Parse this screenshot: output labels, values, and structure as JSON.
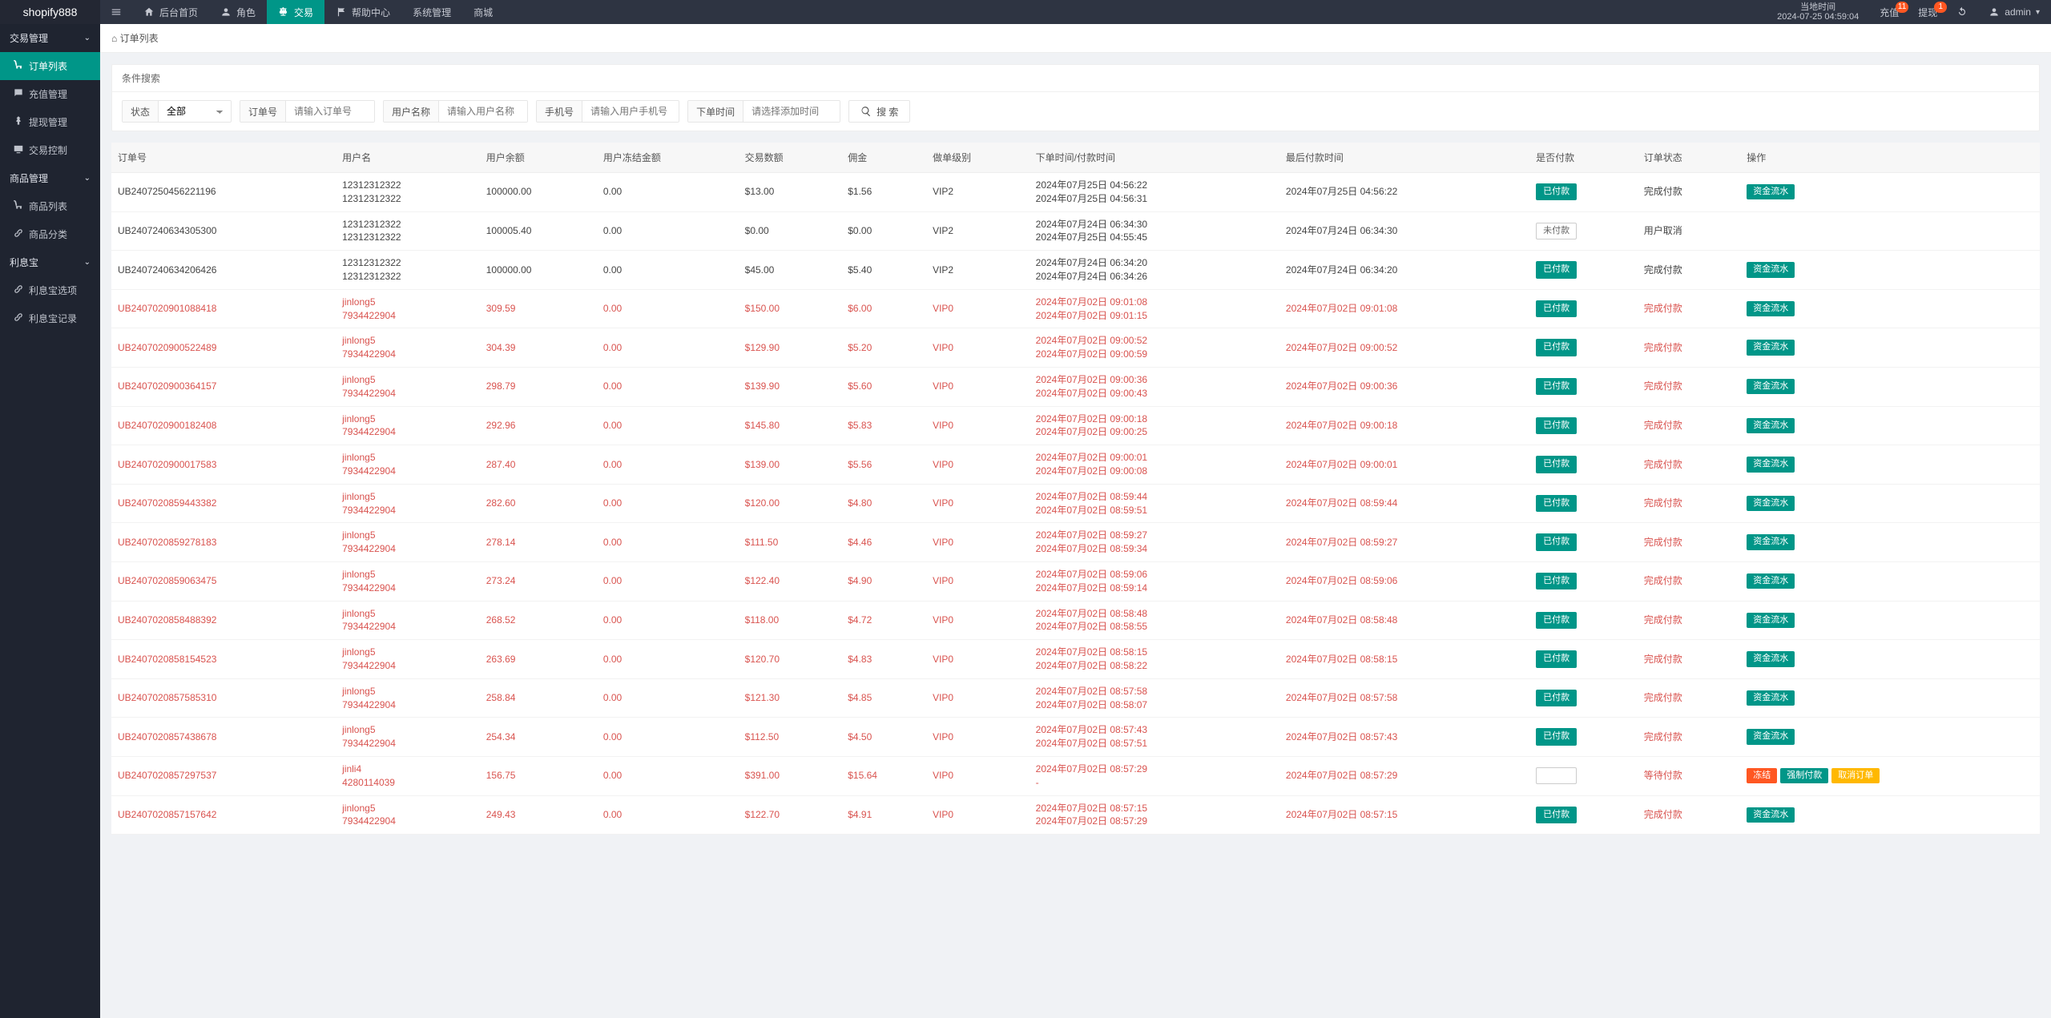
{
  "brand": "shopify888",
  "topnav": [
    {
      "label": "后台首页",
      "icon": "home"
    },
    {
      "label": "角色",
      "icon": "user"
    },
    {
      "label": "交易",
      "icon": "scale",
      "active": true
    },
    {
      "label": "帮助中心",
      "icon": "flag"
    },
    {
      "label": "系统管理"
    },
    {
      "label": "商城"
    }
  ],
  "clock": {
    "title": "当地时间",
    "value": "2024-07-25 04:59:04"
  },
  "topActions": {
    "recharge": {
      "label": "充值",
      "badge": "11"
    },
    "withdraw": {
      "label": "提现",
      "badge": "1"
    },
    "user": "admin"
  },
  "sidebar": [
    {
      "type": "group",
      "label": "交易管理",
      "open": true
    },
    {
      "type": "item",
      "label": "订单列表",
      "icon": "cart",
      "active": true
    },
    {
      "type": "item",
      "label": "充值管理",
      "icon": "chat"
    },
    {
      "type": "item",
      "label": "提现管理",
      "icon": "pin"
    },
    {
      "type": "item",
      "label": "交易控制",
      "icon": "tv"
    },
    {
      "type": "group",
      "label": "商品管理",
      "open": true
    },
    {
      "type": "item",
      "label": "商品列表",
      "icon": "cart"
    },
    {
      "type": "item",
      "label": "商品分类",
      "icon": "link"
    },
    {
      "type": "group",
      "label": "利息宝",
      "open": true
    },
    {
      "type": "item",
      "label": "利息宝选项",
      "icon": "link"
    },
    {
      "type": "item",
      "label": "利息宝记录",
      "icon": "link"
    }
  ],
  "breadcrumb": "订单列表",
  "search": {
    "title": "条件搜索",
    "status": {
      "label": "状态",
      "value": "全部"
    },
    "orderNo": {
      "label": "订单号",
      "placeholder": "请输入订单号"
    },
    "username": {
      "label": "用户名称",
      "placeholder": "请输入用户名称"
    },
    "phone": {
      "label": "手机号",
      "placeholder": "请输入用户手机号"
    },
    "orderTime": {
      "label": "下单时间",
      "placeholder": "请选择添加时间"
    },
    "button": "搜 索"
  },
  "columns": [
    "订单号",
    "用户名",
    "用户余额",
    "用户冻结金额",
    "交易数额",
    "佣金",
    "做单级别",
    "下单时间/付款时间",
    "最后付款时间",
    "是否付款",
    "订单状态",
    "操作"
  ],
  "paidStatus": {
    "paid": "已付款",
    "unpaid": "未付款"
  },
  "ops": {
    "flow": "资金流水",
    "freeze": "冻结",
    "force": "强制付款",
    "cancel": "取消订单"
  },
  "rows": [
    {
      "no": "UB2407250456221196",
      "u1": "12312312322",
      "u2": "12312312322",
      "bal": "100000.00",
      "froz": "0.00",
      "amt": "$13.00",
      "comm": "$1.56",
      "lvl": "VIP2",
      "t1": "2024年07月25日 04:56:22",
      "t2": "2024年07月25日 04:56:31",
      "last": "2024年07月25日 04:56:22",
      "paid": true,
      "state": "完成付款",
      "opset": "flow"
    },
    {
      "no": "UB2407240634305300",
      "u1": "12312312322",
      "u2": "12312312322",
      "bal": "100005.40",
      "froz": "0.00",
      "amt": "$0.00",
      "comm": "$0.00",
      "lvl": "VIP2",
      "t1": "2024年07月24日 06:34:30",
      "t2": "2024年07月25日 04:55:45",
      "last": "2024年07月24日 06:34:30",
      "paid": false,
      "state": "用户取消",
      "opset": "none"
    },
    {
      "no": "UB2407240634206426",
      "u1": "12312312322",
      "u2": "12312312322",
      "bal": "100000.00",
      "froz": "0.00",
      "amt": "$45.00",
      "comm": "$5.40",
      "lvl": "VIP2",
      "t1": "2024年07月24日 06:34:20",
      "t2": "2024年07月24日 06:34:26",
      "last": "2024年07月24日 06:34:20",
      "paid": true,
      "state": "完成付款",
      "opset": "flow"
    },
    {
      "no": "UB2407020901088418",
      "u1": "jinlong5",
      "u2": "7934422904",
      "bal": "309.59",
      "froz": "0.00",
      "amt": "$150.00",
      "comm": "$6.00",
      "lvl": "VIP0",
      "t1": "2024年07月02日 09:01:08",
      "t2": "2024年07月02日 09:01:15",
      "last": "2024年07月02日 09:01:08",
      "paid": true,
      "state": "完成付款",
      "opset": "flow",
      "hl": true
    },
    {
      "no": "UB2407020900522489",
      "u1": "jinlong5",
      "u2": "7934422904",
      "bal": "304.39",
      "froz": "0.00",
      "amt": "$129.90",
      "comm": "$5.20",
      "lvl": "VIP0",
      "t1": "2024年07月02日 09:00:52",
      "t2": "2024年07月02日 09:00:59",
      "last": "2024年07月02日 09:00:52",
      "paid": true,
      "state": "完成付款",
      "opset": "flow",
      "hl": true
    },
    {
      "no": "UB2407020900364157",
      "u1": "jinlong5",
      "u2": "7934422904",
      "bal": "298.79",
      "froz": "0.00",
      "amt": "$139.90",
      "comm": "$5.60",
      "lvl": "VIP0",
      "t1": "2024年07月02日 09:00:36",
      "t2": "2024年07月02日 09:00:43",
      "last": "2024年07月02日 09:00:36",
      "paid": true,
      "state": "完成付款",
      "opset": "flow",
      "hl": true
    },
    {
      "no": "UB2407020900182408",
      "u1": "jinlong5",
      "u2": "7934422904",
      "bal": "292.96",
      "froz": "0.00",
      "amt": "$145.80",
      "comm": "$5.83",
      "lvl": "VIP0",
      "t1": "2024年07月02日 09:00:18",
      "t2": "2024年07月02日 09:00:25",
      "last": "2024年07月02日 09:00:18",
      "paid": true,
      "state": "完成付款",
      "opset": "flow",
      "hl": true
    },
    {
      "no": "UB2407020900017583",
      "u1": "jinlong5",
      "u2": "7934422904",
      "bal": "287.40",
      "froz": "0.00",
      "amt": "$139.00",
      "comm": "$5.56",
      "lvl": "VIP0",
      "t1": "2024年07月02日 09:00:01",
      "t2": "2024年07月02日 09:00:08",
      "last": "2024年07月02日 09:00:01",
      "paid": true,
      "state": "完成付款",
      "opset": "flow",
      "hl": true
    },
    {
      "no": "UB2407020859443382",
      "u1": "jinlong5",
      "u2": "7934422904",
      "bal": "282.60",
      "froz": "0.00",
      "amt": "$120.00",
      "comm": "$4.80",
      "lvl": "VIP0",
      "t1": "2024年07月02日 08:59:44",
      "t2": "2024年07月02日 08:59:51",
      "last": "2024年07月02日 08:59:44",
      "paid": true,
      "state": "完成付款",
      "opset": "flow",
      "hl": true
    },
    {
      "no": "UB2407020859278183",
      "u1": "jinlong5",
      "u2": "7934422904",
      "bal": "278.14",
      "froz": "0.00",
      "amt": "$111.50",
      "comm": "$4.46",
      "lvl": "VIP0",
      "t1": "2024年07月02日 08:59:27",
      "t2": "2024年07月02日 08:59:34",
      "last": "2024年07月02日 08:59:27",
      "paid": true,
      "state": "完成付款",
      "opset": "flow",
      "hl": true
    },
    {
      "no": "UB2407020859063475",
      "u1": "jinlong5",
      "u2": "7934422904",
      "bal": "273.24",
      "froz": "0.00",
      "amt": "$122.40",
      "comm": "$4.90",
      "lvl": "VIP0",
      "t1": "2024年07月02日 08:59:06",
      "t2": "2024年07月02日 08:59:14",
      "last": "2024年07月02日 08:59:06",
      "paid": true,
      "state": "完成付款",
      "opset": "flow",
      "hl": true
    },
    {
      "no": "UB2407020858488392",
      "u1": "jinlong5",
      "u2": "7934422904",
      "bal": "268.52",
      "froz": "0.00",
      "amt": "$118.00",
      "comm": "$4.72",
      "lvl": "VIP0",
      "t1": "2024年07月02日 08:58:48",
      "t2": "2024年07月02日 08:58:55",
      "last": "2024年07月02日 08:58:48",
      "paid": true,
      "state": "完成付款",
      "opset": "flow",
      "hl": true
    },
    {
      "no": "UB2407020858154523",
      "u1": "jinlong5",
      "u2": "7934422904",
      "bal": "263.69",
      "froz": "0.00",
      "amt": "$120.70",
      "comm": "$4.83",
      "lvl": "VIP0",
      "t1": "2024年07月02日 08:58:15",
      "t2": "2024年07月02日 08:58:22",
      "last": "2024年07月02日 08:58:15",
      "paid": true,
      "state": "完成付款",
      "opset": "flow",
      "hl": true
    },
    {
      "no": "UB2407020857585310",
      "u1": "jinlong5",
      "u2": "7934422904",
      "bal": "258.84",
      "froz": "0.00",
      "amt": "$121.30",
      "comm": "$4.85",
      "lvl": "VIP0",
      "t1": "2024年07月02日 08:57:58",
      "t2": "2024年07月02日 08:58:07",
      "last": "2024年07月02日 08:57:58",
      "paid": true,
      "state": "完成付款",
      "opset": "flow",
      "hl": true
    },
    {
      "no": "UB2407020857438678",
      "u1": "jinlong5",
      "u2": "7934422904",
      "bal": "254.34",
      "froz": "0.00",
      "amt": "$112.50",
      "comm": "$4.50",
      "lvl": "VIP0",
      "t1": "2024年07月02日 08:57:43",
      "t2": "2024年07月02日 08:57:51",
      "last": "2024年07月02日 08:57:43",
      "paid": true,
      "state": "完成付款",
      "opset": "flow",
      "hl": true
    },
    {
      "no": "UB2407020857297537",
      "u1": "jinli4",
      "u2": "4280114039",
      "bal": "156.75",
      "froz": "0.00",
      "amt": "$391.00",
      "comm": "$15.64",
      "lvl": "VIP0",
      "t1": "2024年07月02日 08:57:29",
      "t2": "-",
      "last": "2024年07月02日 08:57:29",
      "paid": false,
      "state": "等待付款",
      "opset": "full",
      "hl": true
    },
    {
      "no": "UB2407020857157642",
      "u1": "jinlong5",
      "u2": "7934422904",
      "bal": "249.43",
      "froz": "0.00",
      "amt": "$122.70",
      "comm": "$4.91",
      "lvl": "VIP0",
      "t1": "2024年07月02日 08:57:15",
      "t2": "2024年07月02日 08:57:29",
      "last": "2024年07月02日 08:57:15",
      "paid": true,
      "state": "完成付款",
      "opset": "flow",
      "hl": true
    }
  ]
}
